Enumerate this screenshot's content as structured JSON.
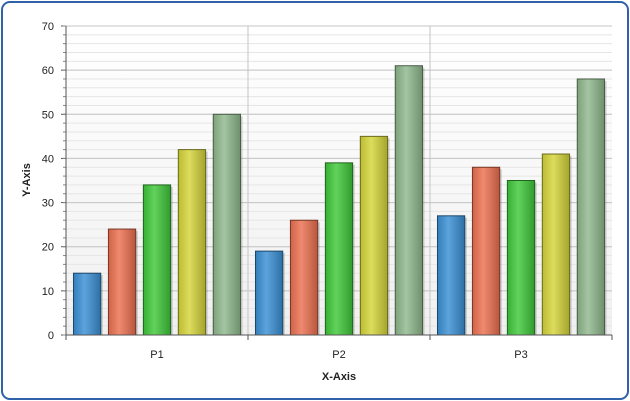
{
  "chart_data": {
    "type": "bar",
    "title": "",
    "xlabel": "X-Axis",
    "ylabel": "Y-Axis",
    "categories": [
      "P1",
      "P2",
      "P3"
    ],
    "ylim": [
      0,
      70
    ],
    "yticks": [
      0,
      10,
      20,
      30,
      40,
      50,
      60,
      70
    ],
    "grid": true,
    "legend": "none",
    "series": [
      {
        "values": [
          14,
          19,
          27
        ],
        "color": "#3a8fd4"
      },
      {
        "values": [
          24,
          26,
          38
        ],
        "color": "#ec7050"
      },
      {
        "values": [
          34,
          39,
          35
        ],
        "color": "#3fc83a"
      },
      {
        "values": [
          42,
          45,
          41
        ],
        "color": "#d4d43a"
      },
      {
        "values": [
          50,
          61,
          58
        ],
        "color": "#8fb88c"
      }
    ]
  }
}
